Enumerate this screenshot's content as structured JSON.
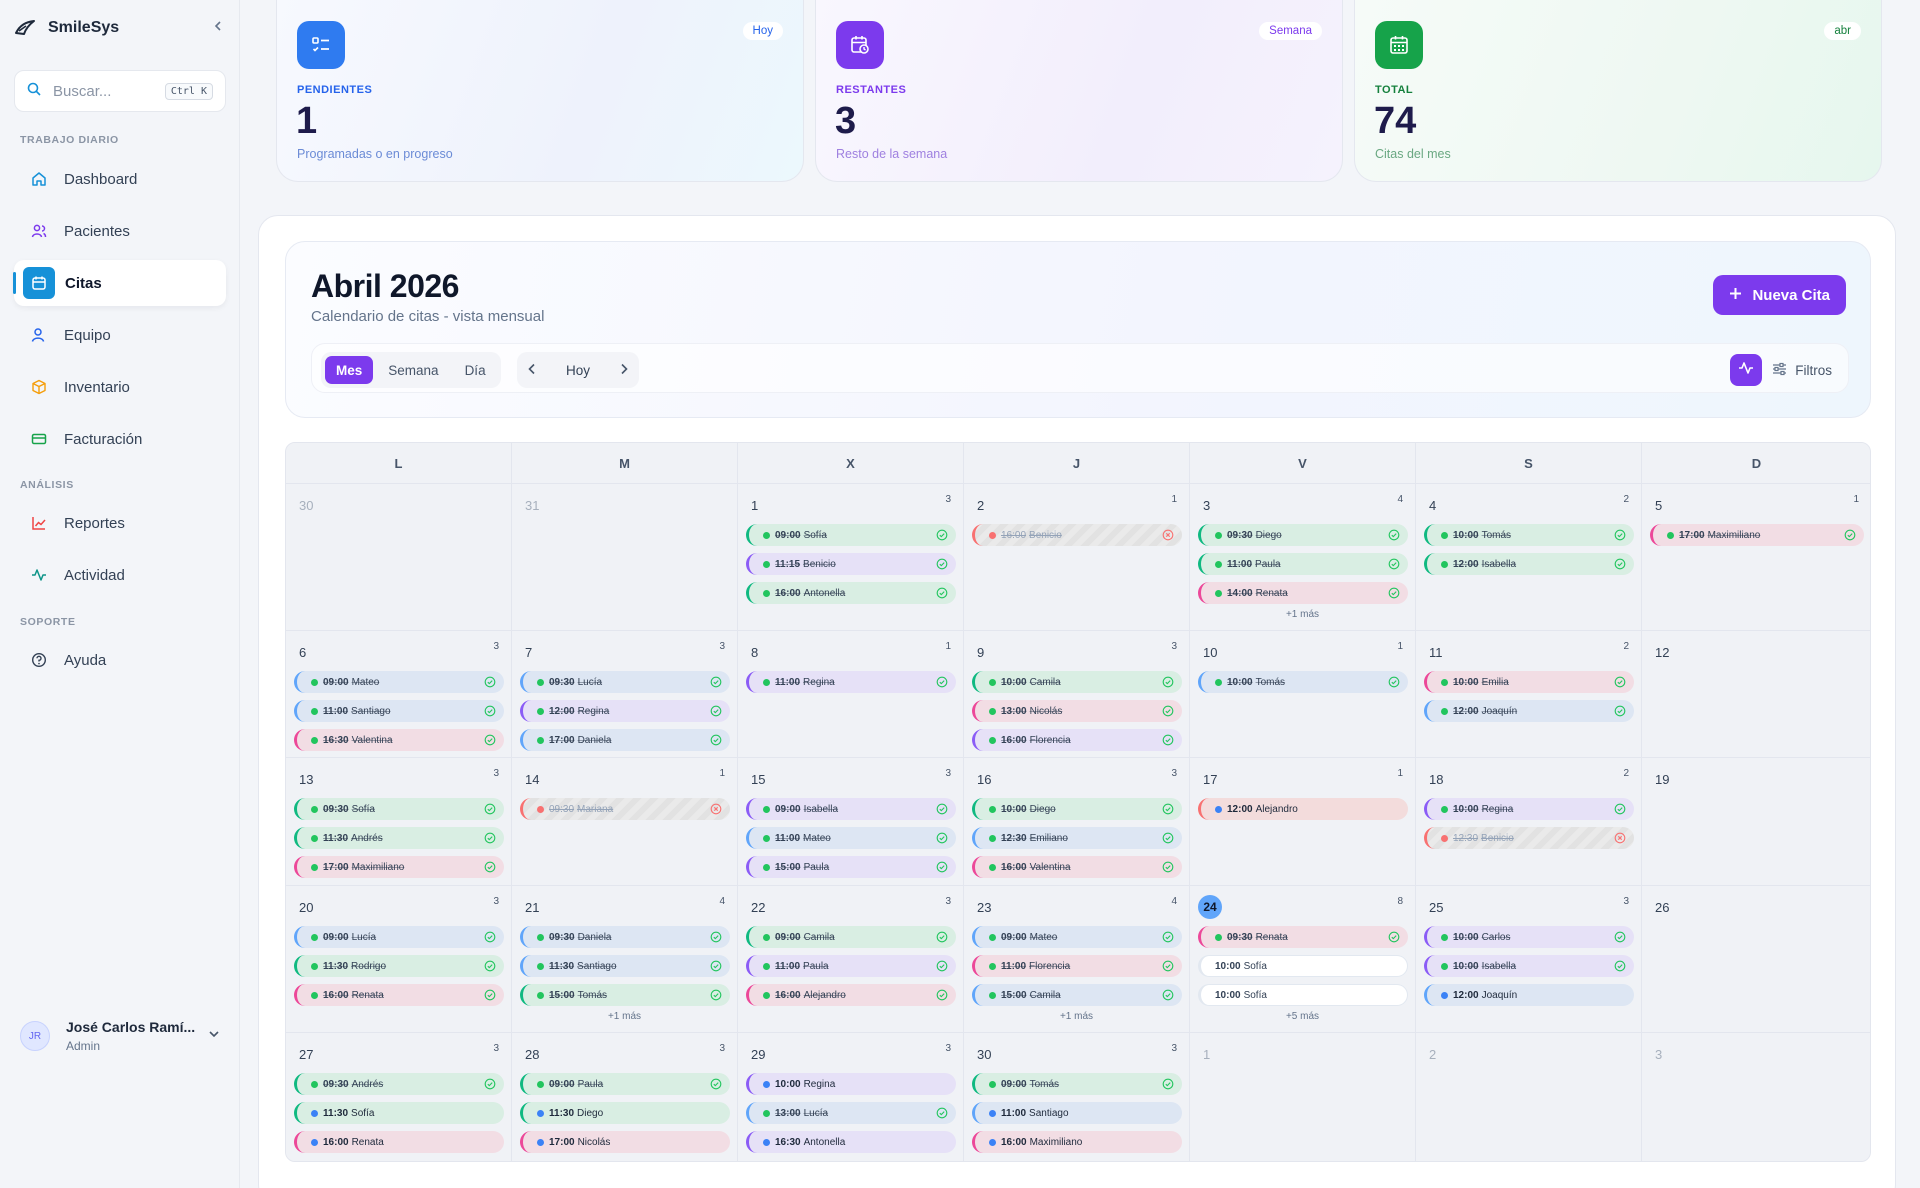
{
  "app": {
    "name": "SmileSys"
  },
  "search": {
    "placeholder": "Buscar...",
    "shortcut": "Ctrl K"
  },
  "sidebar": {
    "sections": [
      "TRABAJO DIARIO",
      "ANÁLISIS",
      "SOPORTE"
    ],
    "items": [
      {
        "label": "Dashboard",
        "icon": "home-icon"
      },
      {
        "label": "Pacientes",
        "icon": "users-icon"
      },
      {
        "label": "Citas",
        "icon": "calendar-icon",
        "active": true
      },
      {
        "label": "Equipo",
        "icon": "user-icon"
      },
      {
        "label": "Inventario",
        "icon": "box-icon"
      },
      {
        "label": "Facturación",
        "icon": "card-icon"
      },
      {
        "label": "Reportes",
        "icon": "chart-icon"
      },
      {
        "label": "Actividad",
        "icon": "activity-icon"
      },
      {
        "label": "Ayuda",
        "icon": "help-icon"
      }
    ]
  },
  "user": {
    "initials": "JR",
    "name": "José Carlos Ramí...",
    "role": "Admin"
  },
  "stats": [
    {
      "badge": "Hoy",
      "label": "PENDIENTES",
      "value": "1",
      "sub": "Programadas o en progreso"
    },
    {
      "badge": "Semana",
      "label": "RESTANTES",
      "value": "3",
      "sub": "Resto de la semana"
    },
    {
      "badge": "abr",
      "label": "TOTAL",
      "value": "74",
      "sub": "Citas del mes"
    }
  ],
  "calendar": {
    "title": "Abril 2026",
    "subtitle": "Calendario de citas - vista mensual",
    "new_button": "Nueva Cita",
    "views": [
      "Mes",
      "Semana",
      "Día"
    ],
    "active_view": "Mes",
    "today_label": "Hoy",
    "filters_label": "Filtros",
    "weekdays": [
      "L",
      "M",
      "X",
      "J",
      "V",
      "S",
      "D"
    ],
    "today_day": "24",
    "weeks": [
      [
        {
          "day": "30",
          "out": true,
          "events": []
        },
        {
          "day": "31",
          "out": true,
          "events": []
        },
        {
          "day": "1",
          "count": "3",
          "events": [
            {
              "time": "09:00",
              "name": "Sofía",
              "color": "green",
              "status": "ok"
            },
            {
              "time": "11:15",
              "name": "Benicio",
              "color": "purple",
              "status": "ok"
            },
            {
              "time": "16:00",
              "name": "Antonella",
              "color": "green",
              "status": "ok"
            }
          ]
        },
        {
          "day": "2",
          "count": "1",
          "events": [
            {
              "time": "16:00",
              "name": "Benicio",
              "color": "red",
              "status": "canc"
            }
          ]
        },
        {
          "day": "3",
          "count": "4",
          "more": "+1 más",
          "events": [
            {
              "time": "09:30",
              "name": "Diego",
              "color": "green",
              "status": "ok"
            },
            {
              "time": "11:00",
              "name": "Paula",
              "color": "green",
              "status": "ok"
            },
            {
              "time": "14:00",
              "name": "Renata",
              "color": "pink",
              "status": "ok"
            }
          ]
        },
        {
          "day": "4",
          "count": "2",
          "events": [
            {
              "time": "10:00",
              "name": "Tomás",
              "color": "green",
              "status": "ok"
            },
            {
              "time": "12:00",
              "name": "Isabella",
              "color": "green",
              "status": "ok"
            }
          ]
        },
        {
          "day": "5",
          "count": "1",
          "events": [
            {
              "time": "17:00",
              "name": "Maximiliano",
              "color": "pink",
              "status": "ok"
            }
          ]
        }
      ],
      [
        {
          "day": "6",
          "count": "3",
          "events": [
            {
              "time": "09:00",
              "name": "Mateo",
              "color": "blue",
              "status": "ok"
            },
            {
              "time": "11:00",
              "name": "Santiago",
              "color": "blue",
              "status": "ok"
            },
            {
              "time": "16:30",
              "name": "Valentina",
              "color": "pink",
              "status": "ok"
            }
          ]
        },
        {
          "day": "7",
          "count": "3",
          "events": [
            {
              "time": "09:30",
              "name": "Lucía",
              "color": "blue",
              "status": "ok"
            },
            {
              "time": "12:00",
              "name": "Regina",
              "color": "purple",
              "status": "ok"
            },
            {
              "time": "17:00",
              "name": "Daniela",
              "color": "blue",
              "status": "ok"
            }
          ]
        },
        {
          "day": "8",
          "count": "1",
          "events": [
            {
              "time": "11:00",
              "name": "Regina",
              "color": "purple",
              "status": "ok"
            }
          ]
        },
        {
          "day": "9",
          "count": "3",
          "events": [
            {
              "time": "10:00",
              "name": "Camila",
              "color": "green",
              "status": "ok"
            },
            {
              "time": "13:00",
              "name": "Nicolás",
              "color": "pink",
              "status": "ok"
            },
            {
              "time": "16:00",
              "name": "Florencia",
              "color": "purple",
              "status": "ok"
            }
          ]
        },
        {
          "day": "10",
          "count": "1",
          "events": [
            {
              "time": "10:00",
              "name": "Tomás",
              "color": "blue",
              "status": "ok"
            }
          ]
        },
        {
          "day": "11",
          "count": "2",
          "events": [
            {
              "time": "10:00",
              "name": "Emilia",
              "color": "pink",
              "status": "ok"
            },
            {
              "time": "12:00",
              "name": "Joaquín",
              "color": "blue",
              "status": "ok"
            }
          ]
        },
        {
          "day": "12",
          "events": []
        }
      ],
      [
        {
          "day": "13",
          "count": "3",
          "events": [
            {
              "time": "09:30",
              "name": "Sofía",
              "color": "green",
              "status": "ok"
            },
            {
              "time": "11:30",
              "name": "Andrés",
              "color": "green",
              "status": "ok"
            },
            {
              "time": "17:00",
              "name": "Maximiliano",
              "color": "pink",
              "status": "ok"
            }
          ]
        },
        {
          "day": "14",
          "count": "1",
          "events": [
            {
              "time": "09:30",
              "name": "Mariana",
              "color": "red",
              "status": "canc"
            }
          ]
        },
        {
          "day": "15",
          "count": "3",
          "events": [
            {
              "time": "09:00",
              "name": "Isabella",
              "color": "purple",
              "status": "ok"
            },
            {
              "time": "11:00",
              "name": "Mateo",
              "color": "blue",
              "status": "ok"
            },
            {
              "time": "15:00",
              "name": "Paula",
              "color": "purple",
              "status": "ok"
            }
          ]
        },
        {
          "day": "16",
          "count": "3",
          "events": [
            {
              "time": "10:00",
              "name": "Diego",
              "color": "green",
              "status": "ok"
            },
            {
              "time": "12:30",
              "name": "Emiliano",
              "color": "blue",
              "status": "ok"
            },
            {
              "time": "16:00",
              "name": "Valentina",
              "color": "pink",
              "status": "ok"
            }
          ]
        },
        {
          "day": "17",
          "count": "1",
          "events": [
            {
              "time": "12:00",
              "name": "Alejandro",
              "color": "red",
              "status": "pend"
            }
          ]
        },
        {
          "day": "18",
          "count": "2",
          "events": [
            {
              "time": "10:00",
              "name": "Regina",
              "color": "purple",
              "status": "ok"
            },
            {
              "time": "12:30",
              "name": "Benicio",
              "color": "red",
              "status": "canc"
            }
          ]
        },
        {
          "day": "19",
          "events": []
        }
      ],
      [
        {
          "day": "20",
          "count": "3",
          "events": [
            {
              "time": "09:00",
              "name": "Lucía",
              "color": "blue",
              "status": "ok"
            },
            {
              "time": "11:30",
              "name": "Rodrigo",
              "color": "green",
              "status": "ok"
            },
            {
              "time": "16:00",
              "name": "Renata",
              "color": "pink",
              "status": "ok"
            }
          ]
        },
        {
          "day": "21",
          "count": "4",
          "more": "+1 más",
          "events": [
            {
              "time": "09:30",
              "name": "Daniela",
              "color": "blue",
              "status": "ok"
            },
            {
              "time": "11:30",
              "name": "Santiago",
              "color": "blue",
              "status": "ok"
            },
            {
              "time": "15:00",
              "name": "Tomás",
              "color": "green",
              "status": "ok"
            }
          ]
        },
        {
          "day": "22",
          "count": "3",
          "events": [
            {
              "time": "09:00",
              "name": "Camila",
              "color": "green",
              "status": "ok"
            },
            {
              "time": "11:00",
              "name": "Paula",
              "color": "purple",
              "status": "ok"
            },
            {
              "time": "16:00",
              "name": "Alejandro",
              "color": "pink",
              "status": "ok"
            }
          ]
        },
        {
          "day": "23",
          "count": "4",
          "more": "+1 más",
          "events": [
            {
              "time": "09:00",
              "name": "Mateo",
              "color": "blue",
              "status": "ok"
            },
            {
              "time": "11:00",
              "name": "Florencia",
              "color": "pink",
              "status": "ok"
            },
            {
              "time": "15:00",
              "name": "Camila",
              "color": "blue",
              "status": "ok"
            }
          ]
        },
        {
          "day": "24",
          "count": "8",
          "more": "+5 más",
          "events": [
            {
              "time": "09:30",
              "name": "Renata",
              "color": "pink",
              "status": "ok"
            },
            {
              "time": "10:00",
              "name": "Sofía",
              "color": "white",
              "status": "none"
            },
            {
              "time": "10:00",
              "name": "Sofía",
              "color": "white",
              "status": "none"
            }
          ]
        },
        {
          "day": "25",
          "count": "3",
          "events": [
            {
              "time": "10:00",
              "name": "Carlos",
              "color": "purple",
              "status": "ok"
            },
            {
              "time": "10:00",
              "name": "Isabella",
              "color": "purple",
              "status": "ok"
            },
            {
              "time": "12:00",
              "name": "Joaquín",
              "color": "blue",
              "status": "pend"
            }
          ]
        },
        {
          "day": "26",
          "events": []
        }
      ],
      [
        {
          "day": "27",
          "count": "3",
          "events": [
            {
              "time": "09:30",
              "name": "Andrés",
              "color": "green",
              "status": "ok"
            },
            {
              "time": "11:30",
              "name": "Sofía",
              "color": "green",
              "status": "pend"
            },
            {
              "time": "16:00",
              "name": "Renata",
              "color": "pink",
              "status": "pend"
            }
          ]
        },
        {
          "day": "28",
          "count": "3",
          "events": [
            {
              "time": "09:00",
              "name": "Paula",
              "color": "green",
              "status": "ok"
            },
            {
              "time": "11:30",
              "name": "Diego",
              "color": "green",
              "status": "pend"
            },
            {
              "time": "17:00",
              "name": "Nicolás",
              "color": "pink",
              "status": "pend"
            }
          ]
        },
        {
          "day": "29",
          "count": "3",
          "events": [
            {
              "time": "10:00",
              "name": "Regina",
              "color": "purple",
              "status": "pend"
            },
            {
              "time": "13:00",
              "name": "Lucía",
              "color": "blue",
              "status": "ok"
            },
            {
              "time": "16:30",
              "name": "Antonella",
              "color": "purple",
              "status": "pend"
            }
          ]
        },
        {
          "day": "30",
          "count": "3",
          "events": [
            {
              "time": "09:00",
              "name": "Tomás",
              "color": "green",
              "status": "ok"
            },
            {
              "time": "11:00",
              "name": "Santiago",
              "color": "blue",
              "status": "pend"
            },
            {
              "time": "16:00",
              "name": "Maximiliano",
              "color": "pink",
              "status": "pend"
            }
          ]
        },
        {
          "day": "1",
          "out": true,
          "events": []
        },
        {
          "day": "2",
          "out": true,
          "events": []
        },
        {
          "day": "3",
          "out": true,
          "events": []
        }
      ]
    ]
  },
  "colors": {
    "accent": "#7c3aed",
    "active_nav": "#1691d8",
    "ok_dot": "#22c55e",
    "pending_dot": "#3b82f6",
    "cancelled_dot": "#f87171"
  }
}
